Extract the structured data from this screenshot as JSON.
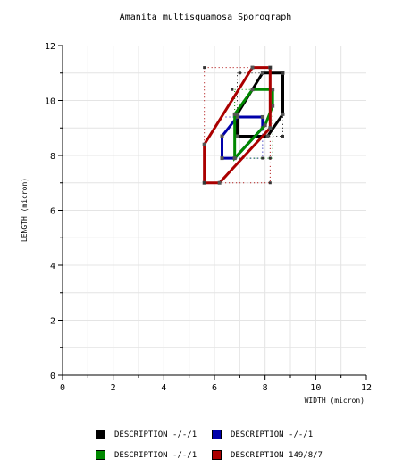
{
  "chart_data": {
    "type": "line",
    "title": "Amanita multisquamosa Sporograph",
    "xlabel": "WIDTH (micron)",
    "ylabel": "LENGTH (micron)",
    "xlim": [
      0,
      12
    ],
    "ylim": [
      0,
      12
    ],
    "xticks": [
      "0",
      "2",
      "4",
      "6",
      "8",
      "10",
      "12"
    ],
    "yticks": [
      "0",
      "2",
      "4",
      "6",
      "8",
      "10",
      "12"
    ],
    "grid": true,
    "legend_position": "bottom",
    "series": [
      {
        "name": "DESCRIPTION -/-/1",
        "color": "#000000",
        "polygon": [
          [
            6.9,
            8.7
          ],
          [
            8.1,
            8.7
          ],
          [
            8.7,
            9.5
          ],
          [
            8.7,
            11.0
          ],
          [
            7.9,
            11.0
          ],
          [
            6.9,
            9.5
          ]
        ],
        "box": [
          6.9,
          8.7,
          8.7,
          11.0
        ]
      },
      {
        "name": "DESCRIPTION -/-/1",
        "color": "#0000aa",
        "polygon": [
          [
            6.3,
            7.9
          ],
          [
            6.8,
            7.9
          ],
          [
            7.9,
            9.0
          ],
          [
            7.9,
            9.4
          ],
          [
            6.9,
            9.4
          ],
          [
            6.3,
            8.7
          ]
        ],
        "box": [
          6.3,
          7.9,
          7.9,
          9.4
        ]
      },
      {
        "name": "DESCRIPTION -/-/1",
        "color": "#008800",
        "polygon": [
          [
            6.8,
            7.9
          ],
          [
            8.0,
            9.1
          ],
          [
            8.3,
            9.8
          ],
          [
            8.3,
            10.4
          ],
          [
            7.5,
            10.4
          ],
          [
            6.8,
            9.5
          ]
        ],
        "box": [
          6.8,
          7.9,
          8.3,
          10.4
        ]
      },
      {
        "name": "DESCRIPTION 149/8/7",
        "color": "#aa0000",
        "polygon": [
          [
            5.6,
            7.0
          ],
          [
            6.2,
            7.0
          ],
          [
            8.2,
            9.0
          ],
          [
            8.2,
            11.2
          ],
          [
            7.5,
            11.2
          ],
          [
            5.6,
            8.4
          ]
        ],
        "box": [
          5.6,
          7.0,
          8.2,
          11.2
        ]
      }
    ],
    "points": [
      {
        "x": 5.6,
        "y": 11.2
      },
      {
        "x": 8.2,
        "y": 11.2
      },
      {
        "x": 5.6,
        "y": 7.0
      },
      {
        "x": 8.2,
        "y": 7.0
      },
      {
        "x": 7.0,
        "y": 11.0
      },
      {
        "x": 8.7,
        "y": 11.0
      },
      {
        "x": 8.7,
        "y": 8.7
      },
      {
        "x": 6.7,
        "y": 10.4
      },
      {
        "x": 7.9,
        "y": 7.9
      },
      {
        "x": 8.2,
        "y": 7.9
      }
    ]
  }
}
